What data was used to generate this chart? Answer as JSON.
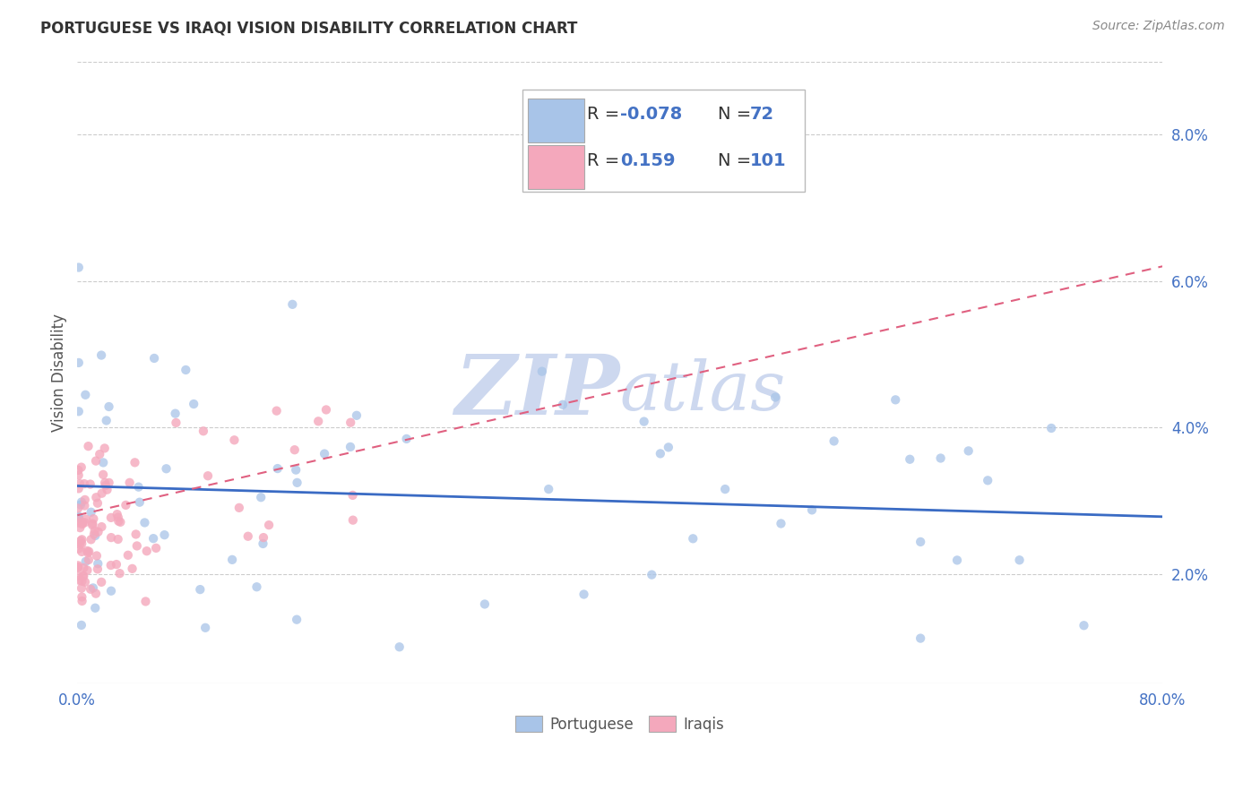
{
  "title": "PORTUGUESE VS IRAQI VISION DISABILITY CORRELATION CHART",
  "source": "Source: ZipAtlas.com",
  "ylabel": "Vision Disability",
  "portuguese_color": "#a8c4e8",
  "iraqi_color": "#f4a8bc",
  "portuguese_line_color": "#3a6bc4",
  "iraqi_line_color": "#e06080",
  "R_portuguese": -0.078,
  "N_portuguese": 72,
  "R_iraqi": 0.159,
  "N_iraqi": 101,
  "watermark_zip": "ZIP",
  "watermark_atlas": "atlas",
  "watermark_color": "#d0dff5",
  "legend_label_portuguese": "Portuguese",
  "legend_label_iraqi": "Iraqis",
  "xlim": [
    0.0,
    0.8
  ],
  "ylim": [
    0.005,
    0.09
  ],
  "ytick_pos": [
    0.02,
    0.04,
    0.06,
    0.08
  ],
  "ytick_labels": [
    "2.0%",
    "4.0%",
    "6.0%",
    "8.0%"
  ],
  "xtick_pos": [
    0.0,
    0.1,
    0.2,
    0.3,
    0.4,
    0.5,
    0.6,
    0.7,
    0.8
  ],
  "xtick_labels": [
    "0.0%",
    "",
    "",
    "",
    "",
    "",
    "",
    "",
    "80.0%"
  ],
  "port_trend_x0": 0.0,
  "port_trend_y0": 0.032,
  "port_trend_x1": 0.8,
  "port_trend_y1": 0.0278,
  "iraqi_trend_x0": 0.0,
  "iraqi_trend_y0": 0.028,
  "iraqi_trend_x1": 0.8,
  "iraqi_trend_y1": 0.062,
  "grid_color": "#cccccc",
  "seed_port": 7,
  "seed_iraqi": 13
}
